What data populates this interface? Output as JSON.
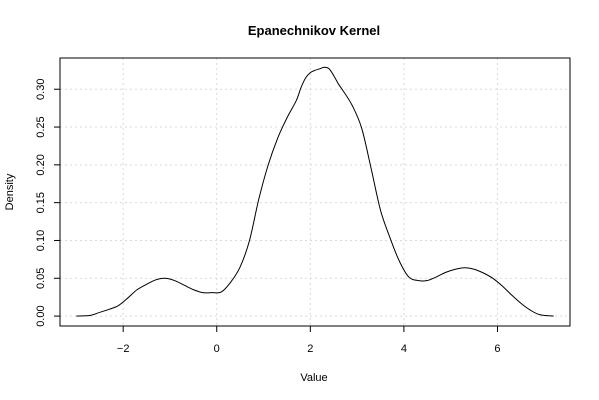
{
  "chart_data": {
    "type": "line",
    "title": "Epanechnikov Kernel",
    "xlabel": "Value",
    "ylabel": "Density",
    "xlim": [
      -3.35,
      7.55
    ],
    "ylim": [
      -0.0131,
      0.3413
    ],
    "x_ticks": [
      -2,
      0,
      2,
      4,
      6
    ],
    "x_tick_labels": [
      "−2",
      "0",
      "2",
      "4",
      "6"
    ],
    "y_ticks": [
      0.0,
      0.05,
      0.1,
      0.15,
      0.2,
      0.25,
      0.3
    ],
    "y_tick_labels": [
      "0.00",
      "0.05",
      "0.10",
      "0.15",
      "0.20",
      "0.25",
      "0.30"
    ],
    "grid": true,
    "series": [
      {
        "x": [
          -3.0,
          -2.7,
          -2.5,
          -2.3,
          -2.1,
          -1.9,
          -1.7,
          -1.5,
          -1.3,
          -1.1,
          -0.9,
          -0.7,
          -0.5,
          -0.3,
          -0.1,
          0.1,
          0.3,
          0.5,
          0.7,
          0.9,
          1.1,
          1.3,
          1.5,
          1.7,
          1.8,
          1.9,
          2.0,
          2.1,
          2.2,
          2.3,
          2.4,
          2.5,
          2.6,
          2.7,
          2.9,
          3.1,
          3.3,
          3.5,
          3.7,
          3.9,
          4.1,
          4.3,
          4.5,
          4.7,
          4.9,
          5.1,
          5.3,
          5.5,
          5.7,
          5.9,
          6.1,
          6.3,
          6.5,
          6.7,
          6.9,
          7.2
        ],
        "y": [
          0.0,
          0.001,
          0.005,
          0.009,
          0.014,
          0.024,
          0.035,
          0.042,
          0.048,
          0.05,
          0.047,
          0.041,
          0.035,
          0.031,
          0.031,
          0.032,
          0.045,
          0.065,
          0.1,
          0.155,
          0.2,
          0.235,
          0.262,
          0.285,
          0.302,
          0.315,
          0.322,
          0.325,
          0.327,
          0.329,
          0.327,
          0.318,
          0.307,
          0.298,
          0.278,
          0.248,
          0.195,
          0.14,
          0.104,
          0.073,
          0.052,
          0.047,
          0.047,
          0.052,
          0.058,
          0.062,
          0.064,
          0.062,
          0.057,
          0.05,
          0.04,
          0.028,
          0.017,
          0.008,
          0.002,
          0.0
        ]
      }
    ]
  }
}
